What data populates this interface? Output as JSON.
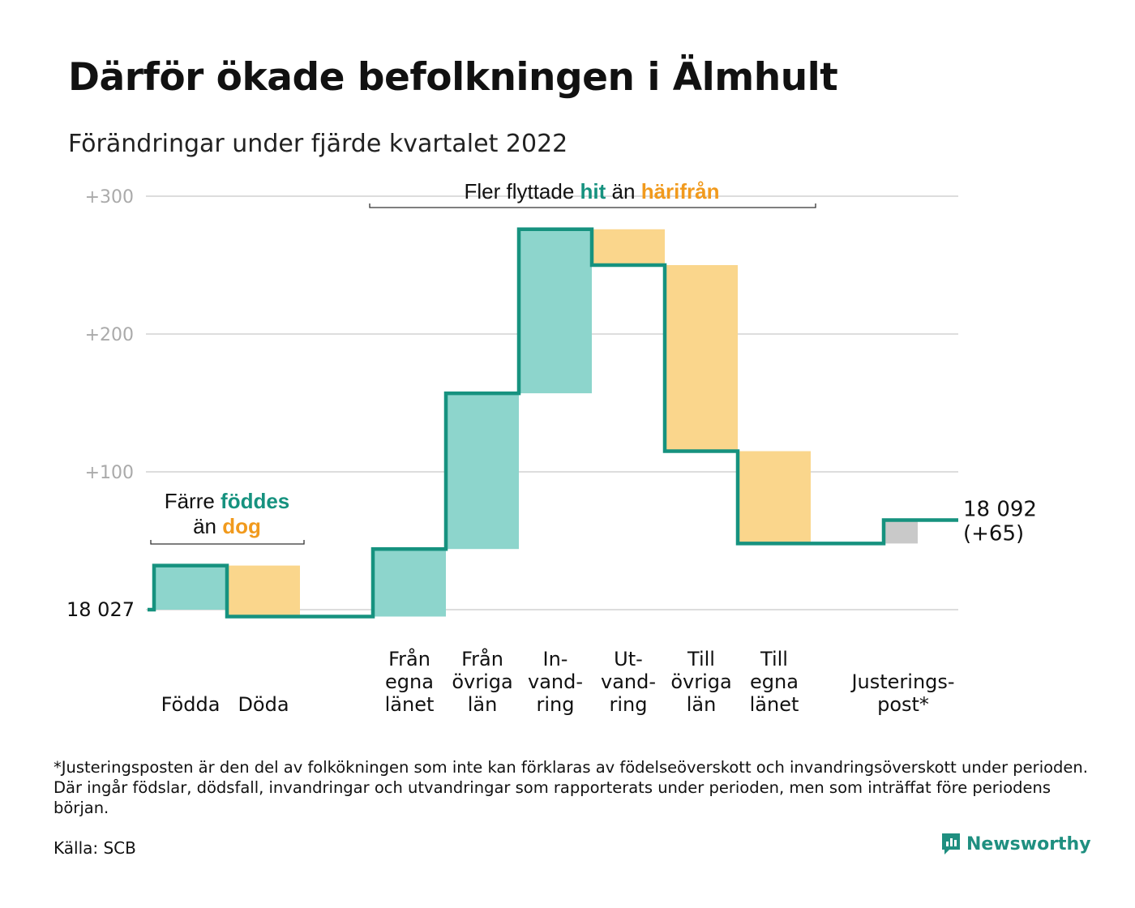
{
  "title": "Därför ökade befolkningen i Älmhult",
  "subtitle": "Förändringar under fjärde kvartalet 2022",
  "colors": {
    "teal_line": "#16927f",
    "teal_fill": "#8dd5cc",
    "orange_fill": "#fad68c",
    "orange_text": "#f19a1d",
    "gray_fill": "#c9c9c9",
    "grid": "#dddddd",
    "tick_text": "#aaaaaa"
  },
  "chart_data": {
    "type": "waterfall",
    "start_value": 18027,
    "start_label": "18 027",
    "end_label_line1": "18 092",
    "end_label_line2": "(+65)",
    "y_ticks": [
      {
        "value": 100,
        "label": "+100"
      },
      {
        "value": 200,
        "label": "+200"
      },
      {
        "value": 300,
        "label": "+300"
      }
    ],
    "ylim": [
      0,
      300
    ],
    "steps": [
      {
        "slot": 0,
        "label_lines": [
          "Födda"
        ],
        "change": 32,
        "kind": "increase"
      },
      {
        "slot": 1,
        "label_lines": [
          "Döda"
        ],
        "change": -37,
        "kind": "decrease"
      },
      {
        "slot": 3,
        "label_lines": [
          "Från",
          "egna",
          "länet"
        ],
        "change": 49,
        "kind": "increase"
      },
      {
        "slot": 4,
        "label_lines": [
          "Från",
          "övriga",
          "län"
        ],
        "change": 113,
        "kind": "increase"
      },
      {
        "slot": 5,
        "label_lines": [
          "In-",
          "vand-",
          "ring"
        ],
        "change": 119,
        "kind": "increase"
      },
      {
        "slot": 6,
        "label_lines": [
          "Ut-",
          "vand-",
          "ring"
        ],
        "change": -26,
        "kind": "decrease"
      },
      {
        "slot": 7,
        "label_lines": [
          "Till",
          "övriga",
          "län"
        ],
        "change": -135,
        "kind": "decrease"
      },
      {
        "slot": 8,
        "label_lines": [
          "Till",
          "egna",
          "länet"
        ],
        "change": -67,
        "kind": "decrease"
      },
      {
        "slot": 10,
        "label_lines": [
          "Justerings-",
          "post*"
        ],
        "change": 17,
        "kind": "adjustment"
      }
    ],
    "annotation_births": {
      "line1_pre": "Färre ",
      "line1_hl": "föddes",
      "line2_pre": "än ",
      "line2_hl": "dog"
    },
    "annotation_migration": {
      "pre": "Fler flyttade ",
      "hl1": "hit",
      "mid": " än ",
      "hl2": "härifrån"
    }
  },
  "footnote": "*Justeringsposten är den del av folkökningen som inte kan förklaras av födelseöverskott och invandringsöverskott under perioden. Där ingår födslar, dödsfall, invandringar och utvandringar som rapporterats under perioden, men som inträffat före periodens början.",
  "source": "Källa: SCB",
  "brand": {
    "name": "Newsworthy",
    "icon": "newsworthy-logo-icon"
  }
}
